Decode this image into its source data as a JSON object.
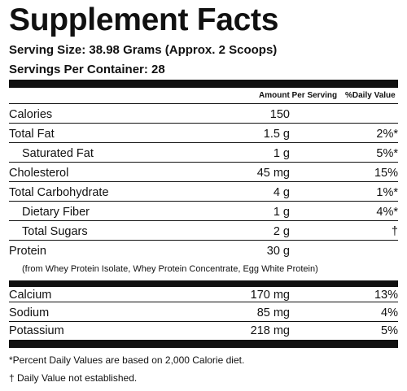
{
  "title": "Supplement Facts",
  "serving_size": "Serving Size: 38.98 Grams (Approx. 2 Scoops)",
  "servings_per_container": "Servings Per Container: 28",
  "column_headers": {
    "amount": "Amount Per Serving",
    "daily_value": "%Daily Value"
  },
  "nutrients": [
    {
      "name": "Calories",
      "amount": "150",
      "dv": ""
    },
    {
      "name": "Total Fat",
      "amount": "1.5 g",
      "dv": "2%*"
    },
    {
      "name": "Saturated Fat",
      "amount": "1 g",
      "dv": "5%*"
    },
    {
      "name": "Cholesterol",
      "amount": "45 mg",
      "dv": "15%"
    },
    {
      "name": "Total Carbohydrate",
      "amount": "4 g",
      "dv": "1%*"
    },
    {
      "name": "Dietary Fiber",
      "amount": "1 g",
      "dv": "4%*"
    },
    {
      "name": "Total Sugars",
      "amount": "2 g",
      "dv": "†"
    },
    {
      "name": "Protein",
      "amount": "30 g",
      "dv": ""
    }
  ],
  "protein_note": "(from Whey Protein Isolate, Whey Protein Concentrate, Egg White Protein)",
  "minerals": [
    {
      "name": "Calcium",
      "amount": "170 mg",
      "dv": "13%"
    },
    {
      "name": "Sodium",
      "amount": "85 mg",
      "dv": "4%"
    },
    {
      "name": "Potassium",
      "amount": "218 mg",
      "dv": "5%"
    }
  ],
  "footnotes": [
    "*Percent Daily Values are based on 2,000 Calorie diet.",
    "† Daily Value not established."
  ]
}
